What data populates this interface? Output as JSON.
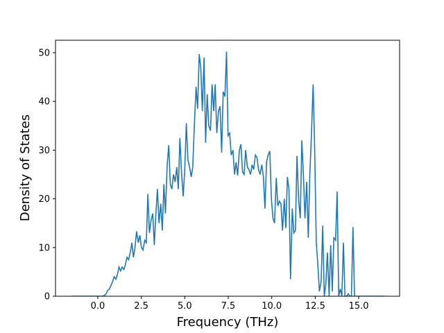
{
  "chart_data": {
    "type": "line",
    "xlabel": "Frequency (THz)",
    "ylabel": "Density of States",
    "color": "#1f77b4",
    "x": [
      -1.5,
      0.3,
      0.39,
      0.48,
      0.57,
      0.67,
      0.76,
      0.85,
      0.94,
      1.04,
      1.13,
      1.22,
      1.31,
      1.4,
      1.5,
      1.59,
      1.68,
      1.77,
      1.87,
      1.96,
      2.05,
      2.14,
      2.23,
      2.33,
      2.42,
      2.51,
      2.6,
      2.7,
      2.79,
      2.88,
      2.97,
      3.06,
      3.16,
      3.25,
      3.34,
      3.43,
      3.52,
      3.62,
      3.71,
      3.8,
      3.89,
      3.99,
      4.08,
      4.17,
      4.26,
      4.35,
      4.45,
      4.54,
      4.63,
      4.72,
      4.82,
      4.91,
      5.0,
      5.09,
      5.18,
      5.28,
      5.37,
      5.46,
      5.55,
      5.65,
      5.74,
      5.83,
      5.92,
      6.01,
      6.11,
      6.2,
      6.29,
      6.38,
      6.48,
      6.57,
      6.66,
      6.75,
      6.84,
      6.94,
      7.03,
      7.12,
      7.21,
      7.31,
      7.4,
      7.49,
      7.58,
      7.67,
      7.77,
      7.86,
      7.95,
      8.04,
      8.14,
      8.23,
      8.32,
      8.41,
      8.5,
      8.6,
      8.69,
      8.78,
      8.87,
      8.96,
      9.06,
      9.15,
      9.24,
      9.33,
      9.43,
      9.52,
      9.61,
      9.7,
      9.79,
      9.89,
      9.98,
      10.07,
      10.16,
      10.26,
      10.35,
      10.44,
      10.53,
      10.62,
      10.72,
      10.81,
      10.9,
      10.99,
      11.08,
      11.18,
      11.27,
      11.36,
      11.45,
      11.55,
      11.64,
      11.73,
      11.82,
      11.91,
      12.01,
      12.1,
      12.19,
      12.28,
      12.38,
      12.47,
      12.56,
      12.65,
      12.74,
      12.84,
      12.93,
      13.02,
      13.11,
      13.2,
      13.3,
      13.39,
      13.48,
      13.57,
      13.67,
      13.76,
      13.85,
      13.94,
      14.03,
      14.12,
      14.21,
      14.3,
      14.4,
      14.49,
      14.58,
      14.67,
      14.76,
      16.5
    ],
    "values": [
      0,
      0,
      0.2,
      0.5,
      1.2,
      1.5,
      2.2,
      3,
      4,
      3.5,
      4.5,
      6,
      5.2,
      6,
      5.5,
      6.5,
      8,
      7.5,
      9,
      11,
      8,
      10,
      13.3,
      11,
      12.5,
      10,
      9.5,
      11.5,
      11,
      21,
      13,
      15.5,
      17,
      10.5,
      17,
      22,
      15,
      19,
      13.5,
      23,
      17,
      27,
      31,
      23,
      22,
      25,
      23.5,
      26.5,
      22,
      32.5,
      25,
      20.5,
      26,
      35.5,
      28,
      26.5,
      24.5,
      26.5,
      35,
      43,
      38.5,
      49.7,
      47,
      38,
      49,
      31.5,
      41.5,
      35,
      34,
      43.5,
      38,
      43.5,
      33.5,
      38,
      39,
      29.5,
      42,
      41,
      50.2,
      33,
      33.5,
      29,
      30,
      25,
      27.5,
      24.8,
      30,
      31.2,
      25.5,
      25,
      30,
      26.5,
      26,
      25,
      27,
      26,
      29,
      28.5,
      26,
      25,
      27,
      24.5,
      18,
      27.5,
      29,
      29.8,
      20,
      16,
      15,
      24.3,
      18.5,
      19.5,
      19,
      13.5,
      20,
      14,
      24.5,
      22,
      3.5,
      18,
      13,
      13.5,
      28.8,
      19.5,
      16,
      32,
      25,
      16,
      23.5,
      12,
      25,
      33,
      43.5,
      30,
      11,
      6.5,
      1,
      3,
      14.5,
      0,
      2.5,
      9,
      0,
      10.5,
      1,
      12,
      11.5,
      21.5,
      0,
      1.5,
      0,
      11,
      0,
      0,
      0.5,
      0,
      0,
      14.2,
      0,
      0
    ],
    "xlim": [
      -2.43,
      17.35
    ],
    "ylim": [
      0,
      52.56
    ],
    "xticks": [
      {
        "value": 0,
        "label": "0.0"
      },
      {
        "value": 2.5,
        "label": "2.5"
      },
      {
        "value": 5,
        "label": "5.0"
      },
      {
        "value": 7.5,
        "label": "7.5"
      },
      {
        "value": 10,
        "label": "10.0"
      },
      {
        "value": 12.5,
        "label": "12.5"
      },
      {
        "value": 15,
        "label": "15.0"
      }
    ],
    "yticks": [
      0,
      10,
      20,
      30,
      40,
      50
    ],
    "grid": false
  }
}
